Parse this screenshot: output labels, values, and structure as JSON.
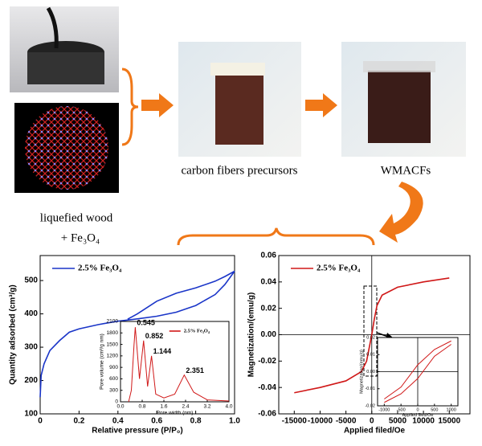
{
  "labels": {
    "precursor": "carbon fibers precursors",
    "product": "WMACFs",
    "wood": "liquefied wood",
    "fe": "+ Fe₃O₄"
  },
  "chart_data": [
    {
      "type": "line",
      "xlabel": "Relative pressure (P/P₀)",
      "ylabel": "Quantity adsorbed (cm³/g)",
      "xlim": [
        0,
        1.0
      ],
      "ylim": [
        100,
        575
      ],
      "xticks": [
        0,
        0.2,
        0.4,
        0.6,
        0.8,
        {
          "value": 1.0,
          "label": "1.0"
        }
      ],
      "yticks": [
        100,
        200,
        300,
        400,
        500
      ],
      "legend": "upper left",
      "series": [
        {
          "name": "2.5% Fe₃O₄",
          "color": "#1a35c8",
          "x": [
            0,
            0.005,
            0.02,
            0.05,
            0.1,
            0.15,
            0.2,
            0.3,
            0.4,
            0.5,
            0.6,
            0.7,
            0.8,
            0.9,
            0.95,
            1.0,
            0.95,
            0.9,
            0.8,
            0.7,
            0.6,
            0.5,
            0.45
          ],
          "values": [
            150,
            215,
            250,
            290,
            320,
            345,
            355,
            368,
            378,
            385,
            393,
            405,
            425,
            458,
            488,
            528,
            512,
            498,
            478,
            462,
            438,
            400,
            384
          ]
        }
      ]
    },
    {
      "type": "line",
      "xlabel": "Pore width (nm)",
      "ylabel": "Pore volume (cm³/g nm)",
      "xlim": [
        0,
        4.0
      ],
      "ylim": [
        0,
        2100
      ],
      "xticks": [
        {
          "value": 0,
          "label": "0.0"
        },
        0.8,
        1.6,
        2.4,
        3.2,
        {
          "value": 4.0,
          "label": "4.0"
        }
      ],
      "yticks": [
        0,
        300,
        600,
        900,
        1200,
        1500,
        1800,
        2100
      ],
      "legend": "upper right",
      "peak_labels": [
        0.545,
        0.852,
        1.144,
        2.351
      ],
      "series": [
        {
          "name": "2.5% Fe₃O₄",
          "color": "#d01818",
          "x": [
            0.3,
            0.4,
            0.5,
            0.545,
            0.7,
            0.852,
            1.0,
            1.144,
            1.3,
            1.6,
            2.0,
            2.351,
            2.7,
            3.2,
            4.0
          ],
          "values": [
            0,
            300,
            1500,
            1950,
            600,
            1600,
            400,
            1200,
            200,
            100,
            200,
            700,
            250,
            50,
            20
          ]
        }
      ]
    },
    {
      "type": "line",
      "xlabel": "Applied filed/Oe",
      "ylabel": "Magnetization/(emu/g)",
      "xlim": [
        -18000,
        19000
      ],
      "ylim": [
        -0.06,
        0.06
      ],
      "xticks": [
        -15000,
        -10000,
        -5000,
        0,
        5000,
        10000,
        15000
      ],
      "yticks": [
        -0.06,
        -0.04,
        -0.02,
        {
          "value": 0,
          "label": "0.00"
        },
        0.02,
        0.04,
        0.06
      ],
      "legend": "upper left",
      "zero_lines": true,
      "series": [
        {
          "name": "2.5% Fe₃O₄",
          "color": "#d01818",
          "x": [
            -15000,
            -10000,
            -5000,
            -2000,
            -1000,
            -500,
            0,
            500,
            1000,
            2000,
            5000,
            10000,
            15000
          ],
          "values": [
            -0.044,
            -0.04,
            -0.035,
            -0.028,
            -0.02,
            -0.01,
            0,
            0.012,
            0.022,
            0.03,
            0.036,
            0.04,
            0.043
          ]
        }
      ]
    },
    {
      "type": "line",
      "xlabel": "Applied filed/Oe",
      "ylabel": "Magnetization/(emu/g)",
      "xlim": [
        -1200,
        1200
      ],
      "ylim": [
        -0.02,
        0.02
      ],
      "xticks": [
        -1000,
        -500,
        0,
        500,
        1000
      ],
      "yticks": [
        -0.02,
        -0.01,
        {
          "value": 0,
          "label": "0.00"
        },
        0.01,
        0.02
      ],
      "zero_lines": true,
      "series": [
        {
          "color": "#d01818",
          "x": [
            -1000,
            -500,
            0,
            500,
            1000
          ],
          "values": [
            -0.018,
            -0.013,
            -0.004,
            0.009,
            0.016
          ]
        },
        {
          "color": "#d01818",
          "x": [
            -1000,
            -500,
            0,
            500,
            1000
          ],
          "values": [
            -0.016,
            -0.009,
            0.004,
            0.013,
            0.018
          ]
        }
      ]
    }
  ]
}
